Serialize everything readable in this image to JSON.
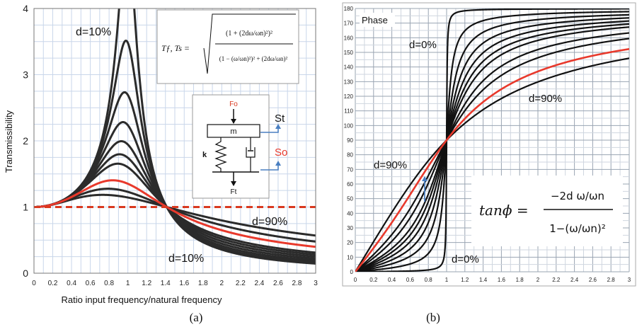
{
  "caption_a": "(a)",
  "caption_b": "(b)",
  "chart_data": [
    {
      "type": "line",
      "title": "",
      "xlabel": "Ratio input frequency/natural frequency",
      "ylabel": "Transmissibility",
      "xlim": [
        0,
        3
      ],
      "ylim": [
        0,
        4
      ],
      "x_ticks": [
        "0",
        "0.2",
        "0.4",
        "0.6",
        "0.8",
        "1",
        "1.2",
        "1.4",
        "1.6",
        "1.8",
        "2",
        "2.2",
        "2.4",
        "2.6",
        "2.8",
        "3"
      ],
      "y_ticks": [
        "0",
        "1",
        "2",
        "3",
        "4"
      ],
      "grid": true,
      "curve_damping_ratios": [
        0.1,
        0.15,
        0.2,
        0.25,
        0.3,
        0.35,
        0.4,
        0.55,
        0.7,
        0.9
      ],
      "highlight_damping_ratio": 0.55,
      "highlight_color": "#e8392c",
      "curve_color": "#2b2b2b",
      "reference_line": {
        "y": 1,
        "style": "dashed",
        "color": "#d9391f"
      },
      "annotations": {
        "d_top": "d=10%",
        "d_right_high": "d=90%",
        "d_right_low": "d=10%"
      },
      "formula": {
        "lhs": "Tƒ, Ts =",
        "numerator": "(1 + (2dω/ωn)²)²",
        "denominator": "(1 − (ω/ωn)²)² + (2dω/ωn)²"
      },
      "diagram": {
        "force_in": "Fo",
        "mass": "m",
        "spring": "k",
        "force_out": "Ft",
        "label_st": "St",
        "label_so": "So",
        "so_color": "#e8392c",
        "arrow_color": "#4a7fc1"
      }
    },
    {
      "type": "line",
      "title": "Phase",
      "xlabel": "",
      "ylabel": "",
      "xlim": [
        0,
        3
      ],
      "ylim": [
        0,
        180
      ],
      "x_ticks": [
        "0",
        "0.2",
        "0.4",
        "0.6",
        "0.8",
        "1",
        "1.2",
        "1.4",
        "1.6",
        "1.8",
        "2",
        "2.2",
        "2.4",
        "2.6",
        "2.8",
        "3"
      ],
      "y_ticks": [
        "0",
        "10",
        "20",
        "30",
        "40",
        "50",
        "60",
        "70",
        "80",
        "90",
        "100",
        "110",
        "120",
        "130",
        "140",
        "150",
        "160",
        "170",
        "180"
      ],
      "grid": true,
      "curve_damping_ratios": [
        0.005,
        0.05,
        0.1,
        0.15,
        0.2,
        0.25,
        0.3,
        0.4,
        0.5,
        0.7,
        0.9
      ],
      "highlight_damping_ratio": 0.7,
      "highlight_color": "#e8392c",
      "curve_color": "#111111",
      "annotations": {
        "d_zero_top": "d=0%",
        "d_ninety_right": "d=90%",
        "d_ninety_left": "d=90%",
        "d_zero_bottom": "d=0%"
      },
      "formula": {
        "lhs": "tanϕ =",
        "numerator": "−2d ω/ωn",
        "denominator": "1−(ω/ωn)²"
      }
    }
  ]
}
